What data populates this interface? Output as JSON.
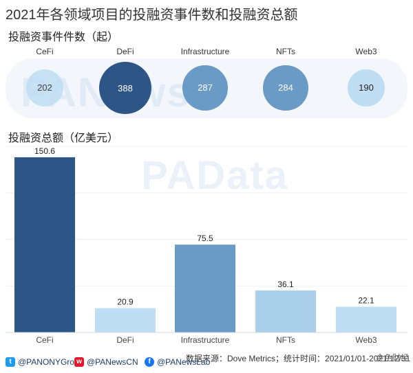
{
  "title": "2021年各领域项目的投融资事件数和投融资总额",
  "section1_title": "投融资事件件数（起）",
  "section2_title": "投融资总额（亿美元）",
  "watermark1": "PANews",
  "watermark2": "PAData",
  "source": "数据来源：Dove Metrics；统计时间：2021/01/01-2021/12/31",
  "corner_badge": "金色财经",
  "footer": {
    "twitter": "@PANONYGroup",
    "weibo": "@PANewsCN",
    "facebook": "@PANewsLab"
  },
  "colors": {
    "darkest": "#2d5585",
    "mid": "#6a9ac6",
    "light": "#a9cfea",
    "lightest": "#bfdef3"
  },
  "chart_data": [
    {
      "type": "bubble",
      "title": "投融资事件件数（起）",
      "categories": [
        "CeFi",
        "DeFi",
        "Infrastructure",
        "NFTs",
        "Web3"
      ],
      "values": [
        202,
        388,
        287,
        284,
        190
      ]
    },
    {
      "type": "bar",
      "title": "投融资总额（亿美元）",
      "categories": [
        "CeFi",
        "DeFi",
        "Infrastructure",
        "NFTs",
        "Web3"
      ],
      "values": [
        150.6,
        20.9,
        75.5,
        36.1,
        22.1
      ],
      "ylim": [
        0,
        160
      ]
    }
  ]
}
